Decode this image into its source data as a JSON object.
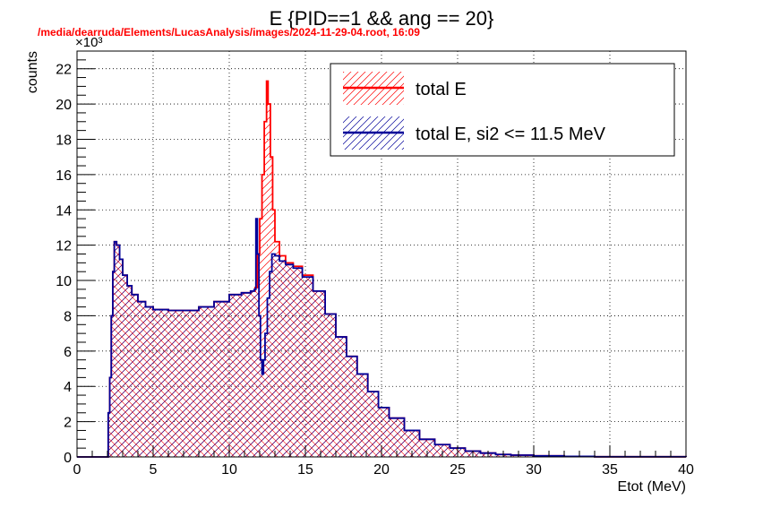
{
  "header": {
    "title": "E {PID==1 && ang == 20}",
    "file_path": "/media/dearruda/Elements/LucasAnalysis/images/2024-11-29-04.root,  16:09"
  },
  "chart_data": {
    "type": "histogram",
    "title": "E {PID==1 && ang == 20}",
    "xlabel": "Etot (MeV)",
    "ylabel": "counts",
    "y_multiplier": "×10³",
    "xlim": [
      0,
      40
    ],
    "ylim": [
      0,
      23
    ],
    "x_ticks": [
      "0",
      "5",
      "10",
      "15",
      "20",
      "25",
      "30",
      "35",
      "40"
    ],
    "y_ticks": [
      "0",
      "2",
      "4",
      "6",
      "8",
      "10",
      "12",
      "14",
      "16",
      "18",
      "20",
      "22"
    ],
    "grid": true,
    "legend_position": "top-right",
    "series": [
      {
        "name": "total E",
        "color": "#ff0000",
        "points": [
          [
            0,
            0
          ],
          [
            2.0,
            0
          ],
          [
            2.05,
            2.5
          ],
          [
            2.15,
            4.5
          ],
          [
            2.25,
            8.0
          ],
          [
            2.35,
            10.5
          ],
          [
            2.45,
            12.2
          ],
          [
            2.6,
            12.0
          ],
          [
            2.8,
            11.2
          ],
          [
            3.0,
            10.3
          ],
          [
            3.3,
            9.7
          ],
          [
            3.6,
            9.2
          ],
          [
            4.0,
            8.8
          ],
          [
            4.5,
            8.5
          ],
          [
            5.0,
            8.35
          ],
          [
            6.0,
            8.3
          ],
          [
            7.0,
            8.3
          ],
          [
            8.0,
            8.5
          ],
          [
            9.0,
            8.8
          ],
          [
            10.0,
            9.2
          ],
          [
            10.8,
            9.3
          ],
          [
            11.4,
            9.4
          ],
          [
            11.7,
            9.6
          ],
          [
            11.85,
            11.5
          ],
          [
            12.0,
            13.5
          ],
          [
            12.15,
            16.0
          ],
          [
            12.3,
            19.0
          ],
          [
            12.45,
            21.3
          ],
          [
            12.55,
            20.0
          ],
          [
            12.7,
            17.0
          ],
          [
            12.85,
            14.0
          ],
          [
            13.0,
            12.2
          ],
          [
            13.3,
            11.4
          ],
          [
            13.7,
            11.0
          ],
          [
            14.2,
            10.8
          ],
          [
            14.8,
            10.3
          ],
          [
            15.5,
            9.4
          ],
          [
            16.3,
            8.1
          ],
          [
            17.0,
            6.8
          ],
          [
            17.7,
            5.7
          ],
          [
            18.4,
            4.7
          ],
          [
            19.1,
            3.7
          ],
          [
            19.8,
            2.8
          ],
          [
            20.5,
            2.2
          ],
          [
            21.5,
            1.5
          ],
          [
            22.5,
            1.0
          ],
          [
            23.5,
            0.7
          ],
          [
            24.5,
            0.5
          ],
          [
            25.5,
            0.33
          ],
          [
            26.5,
            0.22
          ],
          [
            27.5,
            0.14
          ],
          [
            28.5,
            0.1
          ],
          [
            30.0,
            0.06
          ],
          [
            32.0,
            0.03
          ],
          [
            34.0,
            0.01
          ],
          [
            40.0,
            0
          ]
        ]
      },
      {
        "name": "total E, si2 <= 11.5 MeV",
        "color": "#000099",
        "points": [
          [
            0,
            0
          ],
          [
            2.0,
            0
          ],
          [
            2.05,
            2.5
          ],
          [
            2.15,
            4.5
          ],
          [
            2.25,
            8.0
          ],
          [
            2.35,
            10.5
          ],
          [
            2.45,
            12.2
          ],
          [
            2.6,
            12.0
          ],
          [
            2.8,
            11.2
          ],
          [
            3.0,
            10.3
          ],
          [
            3.3,
            9.7
          ],
          [
            3.6,
            9.2
          ],
          [
            4.0,
            8.8
          ],
          [
            4.5,
            8.5
          ],
          [
            5.0,
            8.35
          ],
          [
            6.0,
            8.3
          ],
          [
            7.0,
            8.3
          ],
          [
            8.0,
            8.5
          ],
          [
            9.0,
            8.8
          ],
          [
            10.0,
            9.2
          ],
          [
            10.8,
            9.3
          ],
          [
            11.4,
            9.4
          ],
          [
            11.65,
            9.5
          ],
          [
            11.75,
            13.5
          ],
          [
            11.85,
            11.5
          ],
          [
            11.95,
            8.0
          ],
          [
            12.05,
            5.5
          ],
          [
            12.15,
            4.7
          ],
          [
            12.25,
            5.5
          ],
          [
            12.35,
            7.0
          ],
          [
            12.5,
            9.0
          ],
          [
            12.65,
            10.5
          ],
          [
            12.8,
            11.5
          ],
          [
            13.0,
            11.4
          ],
          [
            13.3,
            11.1
          ],
          [
            13.7,
            10.9
          ],
          [
            14.2,
            10.7
          ],
          [
            14.8,
            10.2
          ],
          [
            15.5,
            9.4
          ],
          [
            16.3,
            8.1
          ],
          [
            17.0,
            6.8
          ],
          [
            17.7,
            5.7
          ],
          [
            18.4,
            4.7
          ],
          [
            19.1,
            3.7
          ],
          [
            19.8,
            2.8
          ],
          [
            20.5,
            2.2
          ],
          [
            21.5,
            1.5
          ],
          [
            22.5,
            1.0
          ],
          [
            23.5,
            0.7
          ],
          [
            24.5,
            0.5
          ],
          [
            25.5,
            0.33
          ],
          [
            26.5,
            0.22
          ],
          [
            27.5,
            0.14
          ],
          [
            28.5,
            0.1
          ],
          [
            30.0,
            0.06
          ],
          [
            32.0,
            0.03
          ],
          [
            34.0,
            0.01
          ],
          [
            40.0,
            0
          ]
        ]
      }
    ]
  }
}
